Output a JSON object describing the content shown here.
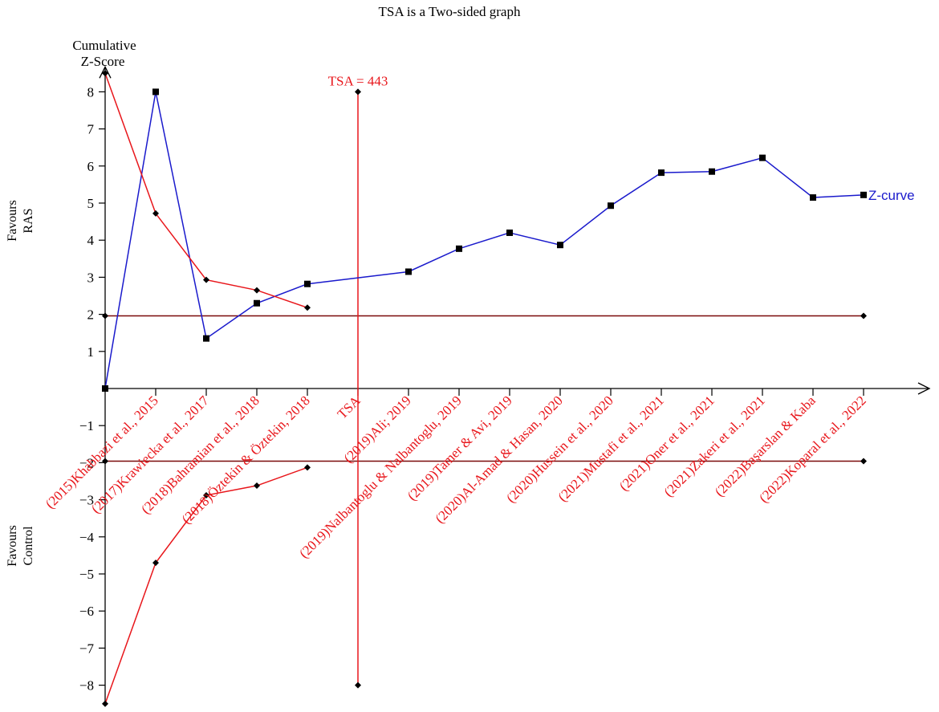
{
  "chart_data": {
    "type": "line",
    "title": "TSA is a Two-sided graph",
    "ylabel": "Cumulative Z-Score",
    "favours_upper": [
      "Favours",
      "RAS"
    ],
    "favours_lower": [
      "Favours",
      "Control"
    ],
    "ylim": [
      -8.5,
      8.5
    ],
    "y_ticks": [
      -8,
      -7,
      -6,
      -5,
      -4,
      -3,
      -2,
      -1,
      1,
      2,
      3,
      4,
      5,
      6,
      7,
      8
    ],
    "x_positions": [
      0,
      1,
      2,
      3,
      4,
      5,
      6,
      7,
      8,
      9,
      10,
      11,
      12,
      13,
      14,
      15
    ],
    "categories": [
      "(2015)Khabbazi et al., 2015",
      "(2017)Krawiecka et al., 2017",
      "(2018)Bahramian et al., 2018",
      "(2018)Öztekin & Öztekin, 2018",
      "TSA",
      "(2019)Ali; 2019",
      "(2019)Nalbantoglu & Nalbantoglu, 2019",
      "(2019)Tamer & Avi, 2019",
      "(2020)Al-Amad & Hasan, 2020",
      "(2020)Hussein et al., 2020",
      "(2021)Mustafi et al., 2021",
      "(2021)Oner et al., 2021",
      "(2021)Zakeri et al., 2021",
      "(2022)Başarslan & Kaba",
      "(2022)Koparal et al., 2022"
    ],
    "category_x": [
      1,
      2,
      3,
      4,
      5,
      6,
      7,
      8,
      9,
      10,
      11,
      12,
      13,
      14,
      15
    ],
    "series": [
      {
        "name": "Z-curve",
        "color": "#1a1acc",
        "marker": "square",
        "x": [
          0,
          1,
          2,
          3,
          4,
          6,
          7,
          8,
          9,
          10,
          11,
          12,
          13,
          14,
          15
        ],
        "y": [
          0.0,
          8.0,
          1.35,
          2.3,
          2.82,
          3.15,
          3.77,
          4.2,
          3.87,
          4.93,
          5.82,
          5.85,
          6.22,
          5.15,
          5.22
        ]
      },
      {
        "color": "#e8161b",
        "marker": "diamond",
        "x": [
          0,
          1,
          2,
          3,
          4
        ],
        "y": [
          8.5,
          4.72,
          2.93,
          2.65,
          2.18
        ]
      },
      {
        "color": "#e8161b",
        "marker": "diamond",
        "x": [
          0,
          1,
          2,
          3,
          4
        ],
        "y": [
          -8.5,
          -4.7,
          -2.88,
          -2.62,
          -2.13
        ]
      }
    ],
    "conventional_boundaries": {
      "color": "#7a0a0a",
      "upper": 1.96,
      "lower": -1.96,
      "x_range": [
        0,
        15
      ]
    },
    "tsa_line": {
      "label": "TSA = 443",
      "color": "#e8161b",
      "x": 5,
      "y_range": [
        -8,
        8
      ]
    }
  }
}
